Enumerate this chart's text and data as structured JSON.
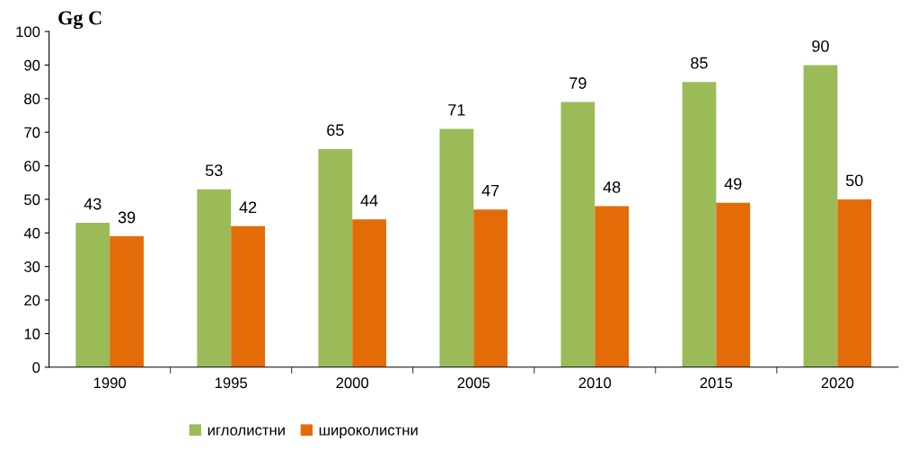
{
  "chart_data": {
    "type": "bar",
    "ylabel": "Gg C",
    "categories": [
      "1990",
      "1995",
      "2000",
      "2005",
      "2010",
      "2015",
      "2020"
    ],
    "series": [
      {
        "name": "иглолистни",
        "color": "#9bbb59",
        "values": [
          43,
          53,
          65,
          71,
          79,
          85,
          90
        ]
      },
      {
        "name": "широколистни",
        "color": "#e36c09",
        "values": [
          39,
          42,
          44,
          47,
          48,
          49,
          50
        ]
      }
    ],
    "ylim": [
      0,
      100
    ],
    "yticks": [
      0,
      10,
      20,
      30,
      40,
      50,
      60,
      70,
      80,
      90,
      100
    ],
    "grid": false,
    "legend": "bottom",
    "data_labels": true
  }
}
